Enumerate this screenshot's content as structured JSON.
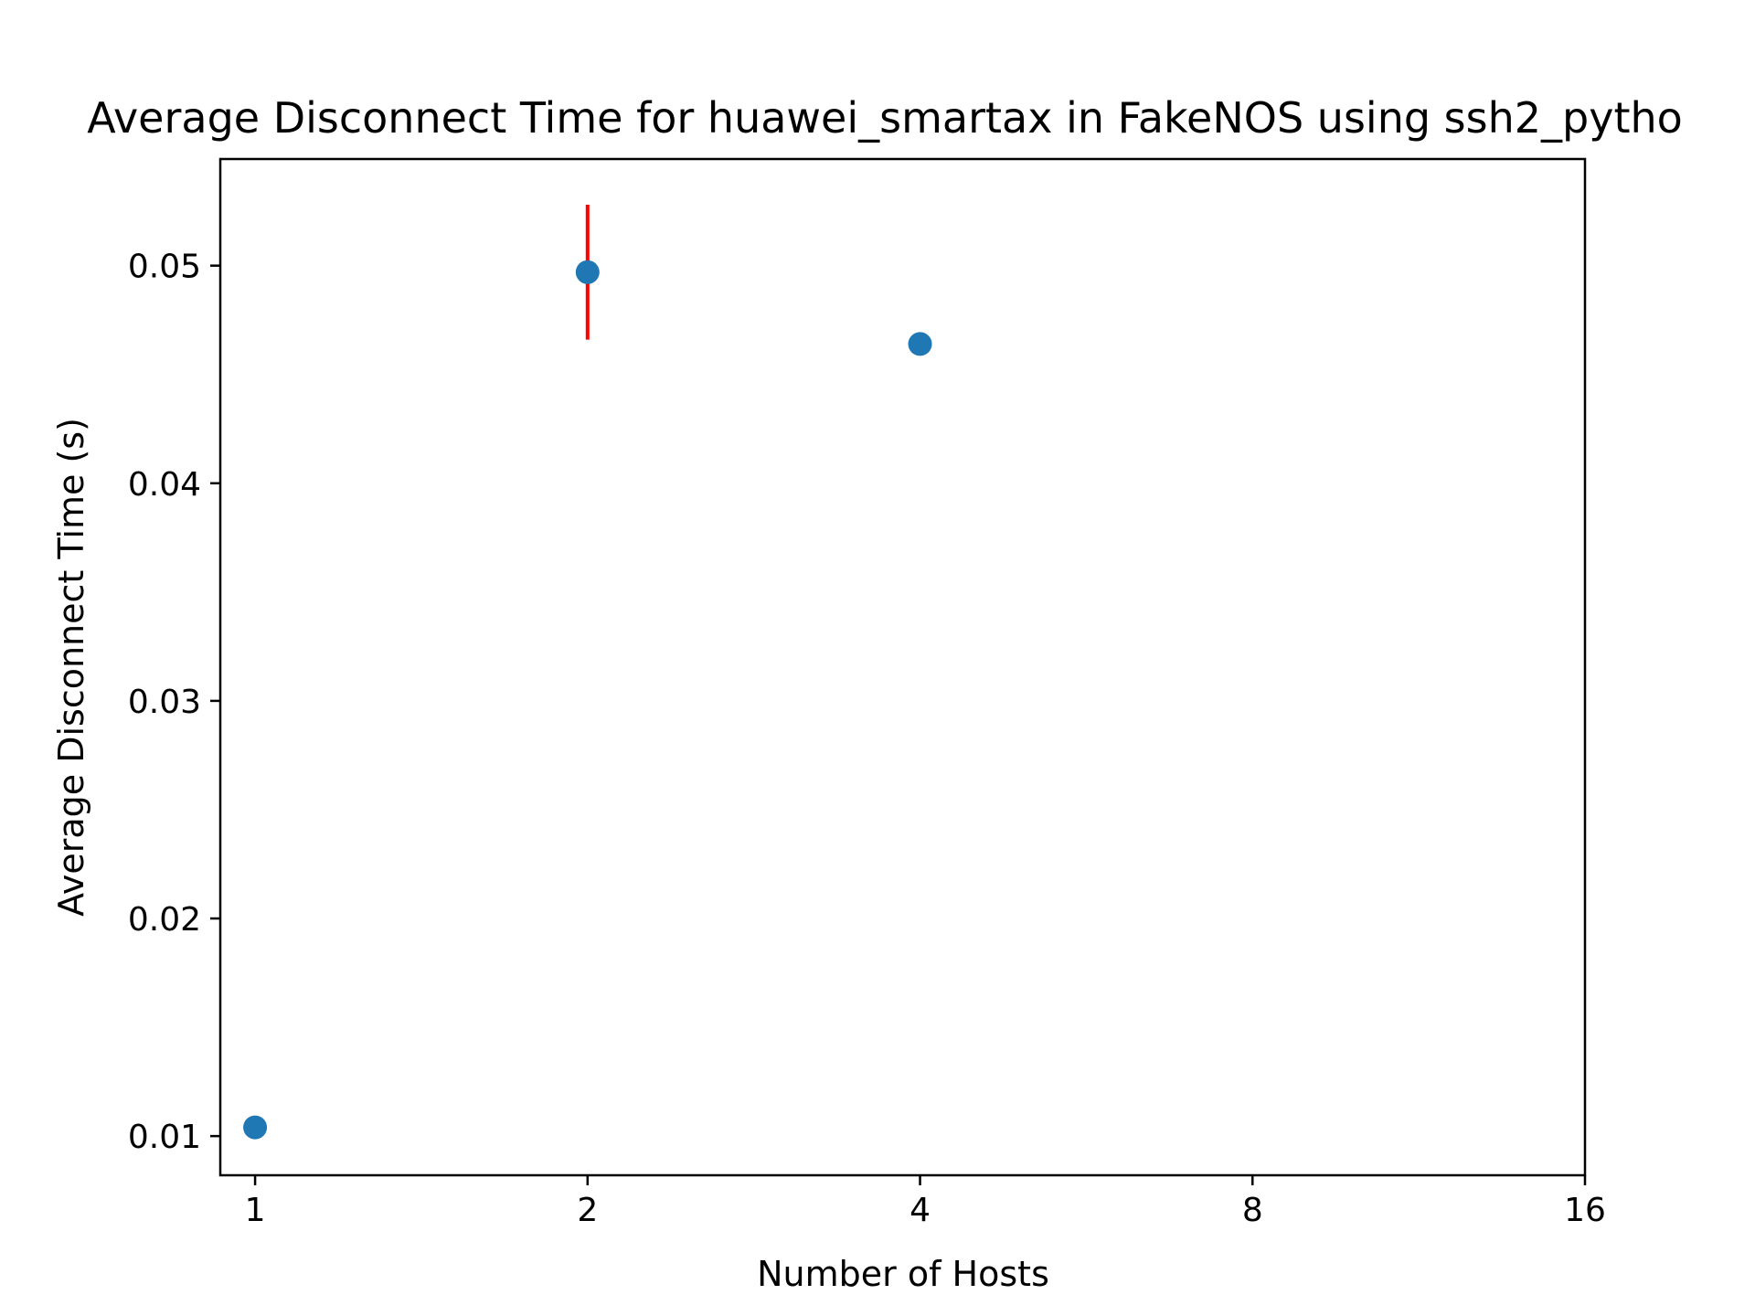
{
  "chart_data": {
    "type": "scatter",
    "title": "Average Disconnect Time for huawei_smartax in FakeNOS using ssh2_pytho",
    "xlabel": "Number of Hosts",
    "ylabel": "Average Disconnect Time (s)",
    "x_scale": "log2",
    "xlim": [
      0.93,
      16
    ],
    "ylim": [
      0.0082,
      0.0549
    ],
    "x_ticks": [
      1,
      2,
      4,
      8,
      16
    ],
    "x_tick_labels": [
      "1",
      "2",
      "4",
      "8",
      "16"
    ],
    "y_ticks": [
      0.01,
      0.02,
      0.03,
      0.04,
      0.05
    ],
    "y_tick_labels": [
      "0.01",
      "0.02",
      "0.03",
      "0.04",
      "0.05"
    ],
    "grid": false,
    "legend": "none",
    "series": [
      {
        "points": [
          {
            "x": 1,
            "y": 0.0104,
            "err": 0
          },
          {
            "x": 2,
            "y": 0.0497,
            "err": 0.0031
          },
          {
            "x": 4,
            "y": 0.0464,
            "err": 0
          }
        ],
        "color": "#1f77b4",
        "error_color": "#ff0000"
      }
    ]
  }
}
